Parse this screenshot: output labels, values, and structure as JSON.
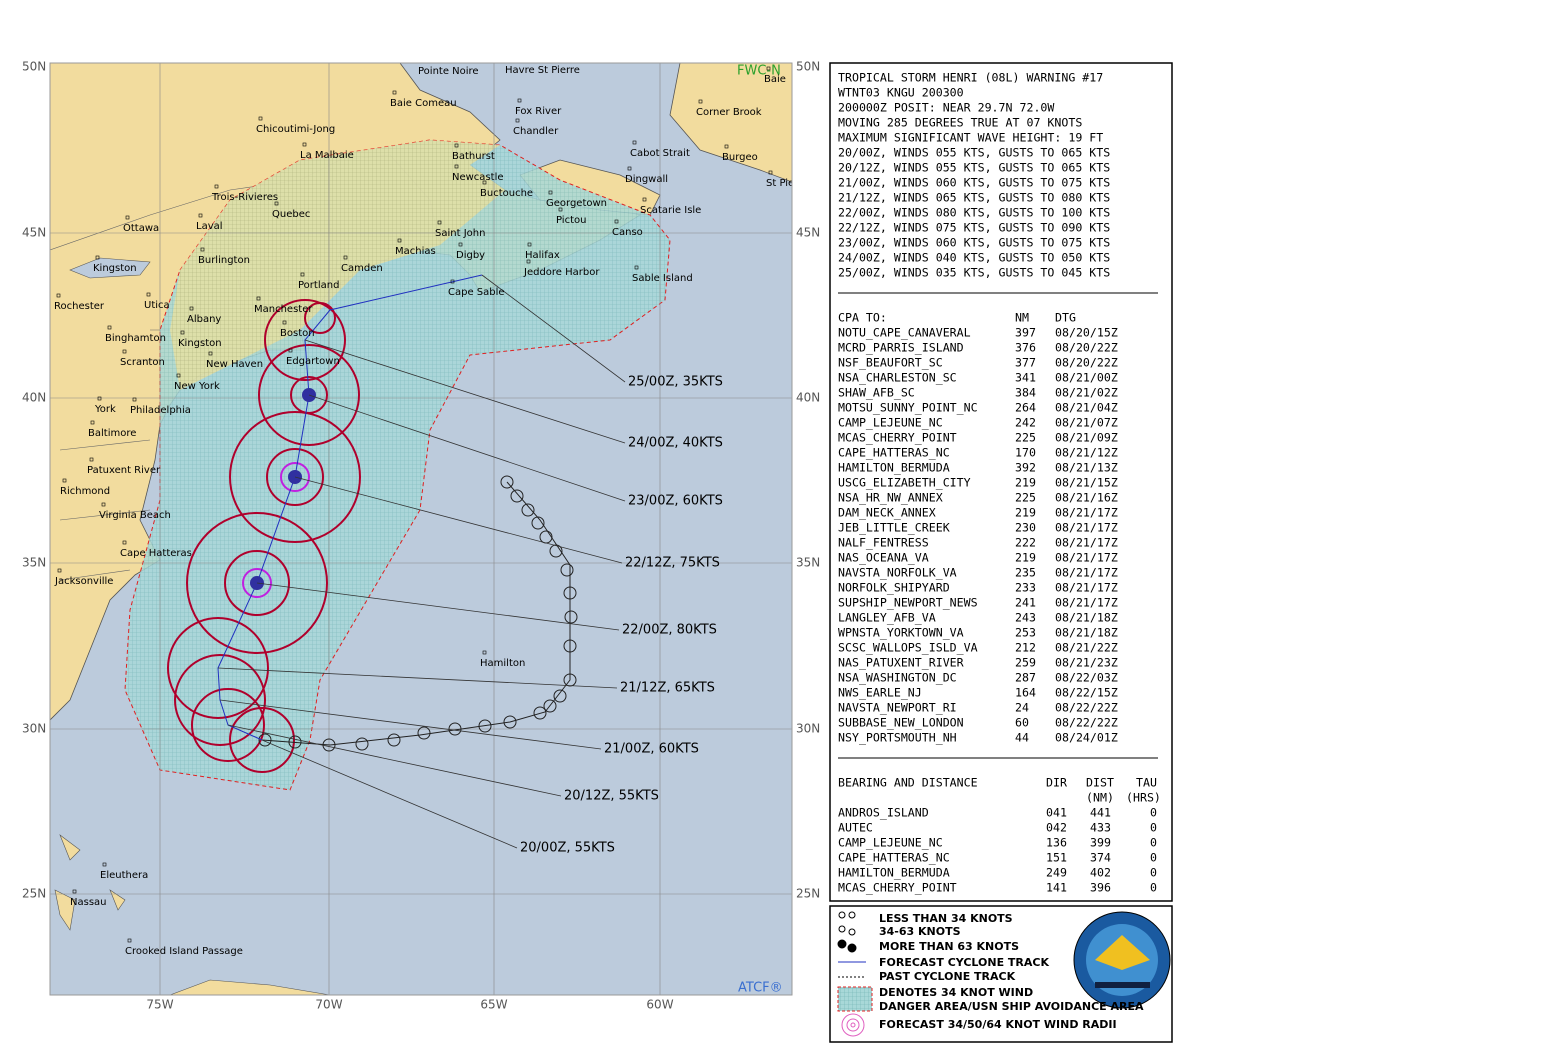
{
  "map": {
    "lat_labels": [
      "50N",
      "45N",
      "40N",
      "35N",
      "30N",
      "25N"
    ],
    "lon_labels": [
      "75W",
      "70W",
      "65W",
      "60W"
    ],
    "corner_labels": [
      "FWC-N",
      "ATCF®"
    ],
    "places": [
      "Pointe Noire",
      "Havre St Pierre",
      "Baie Comeau",
      "Fox River",
      "Corner Brook",
      "Chicoutimi-Jong",
      "Chandler",
      "La Malbaie",
      "Bathurst",
      "Cabot Strait",
      "Burgeo",
      "St Pie",
      "Newcastle",
      "Dingwall",
      "Buctouche",
      "Trois-Rivieres",
      "Georgetown",
      "Scatarie Isle",
      "Quebec",
      "Pictou",
      "Ottawa",
      "Laval",
      "Canso",
      "Saint John",
      "Burlington",
      "Machias",
      "Kingston",
      "Digby",
      "Halifax",
      "Camden",
      "Jeddore Harbor",
      "Sable Island",
      "Portland",
      "Cape Sable",
      "Rochester",
      "Utica",
      "Manchester",
      "Albany",
      "Boston",
      "Binghamton",
      "Kingston",
      "Edgartown",
      "Scranton",
      "New Haven",
      "New York",
      "York",
      "Philadelphia",
      "Baltimore",
      "Patuxent River",
      "Richmond",
      "Virginia Beach",
      "Cape Hatteras",
      "Jacksonville",
      "Hamilton",
      "Baie",
      "Eleuthera",
      "Nassau",
      "Crooked Island Passage"
    ],
    "forecast_labels": [
      "25/00Z, 35KTS",
      "24/00Z, 40KTS",
      "23/00Z, 60KTS",
      "22/12Z, 75KTS",
      "22/00Z, 80KTS",
      "21/12Z, 65KTS",
      "21/00Z, 60KTS",
      "20/12Z, 55KTS",
      "20/00Z, 55KTS"
    ]
  },
  "warning": {
    "lines": [
      "TROPICAL STORM HENRI (08L) WARNING #17",
      "WTNT03 KNGU 200300",
      "200000Z POSIT: NEAR 29.7N 72.0W",
      "MOVING 285 DEGREES TRUE AT 07 KNOTS",
      "MAXIMUM SIGNIFICANT WAVE HEIGHT: 19 FT",
      "20/00Z, WINDS 055 KTS, GUSTS TO 065 KTS",
      "20/12Z, WINDS 055 KTS, GUSTS TO 065 KTS",
      "21/00Z, WINDS 060 KTS, GUSTS TO 075 KTS",
      "21/12Z, WINDS 065 KTS, GUSTS TO 080 KTS",
      "22/00Z, WINDS 080 KTS, GUSTS TO 100 KTS",
      "22/12Z, WINDS 075 KTS, GUSTS TO 090 KTS",
      "23/00Z, WINDS 060 KTS, GUSTS TO 075 KTS",
      "24/00Z, WINDS 040 KTS, GUSTS TO 050 KTS",
      "25/00Z, WINDS 035 KTS, GUSTS TO 045 KTS"
    ]
  },
  "cpa": {
    "header": [
      "CPA TO:",
      "NM",
      "DTG"
    ],
    "rows": [
      [
        "NOTU_CAPE_CANAVERAL",
        "397",
        "08/20/15Z"
      ],
      [
        "MCRD_PARRIS_ISLAND",
        "376",
        "08/20/22Z"
      ],
      [
        "NSF_BEAUFORT_SC",
        "377",
        "08/20/22Z"
      ],
      [
        "NSA_CHARLESTON_SC",
        "341",
        "08/21/00Z"
      ],
      [
        "SHAW_AFB_SC",
        "384",
        "08/21/02Z"
      ],
      [
        "MOTSU_SUNNY_POINT_NC",
        "264",
        "08/21/04Z"
      ],
      [
        "CAMP_LEJEUNE_NC",
        "242",
        "08/21/07Z"
      ],
      [
        "MCAS_CHERRY_POINT",
        "225",
        "08/21/09Z"
      ],
      [
        "CAPE_HATTERAS_NC",
        "170",
        "08/21/12Z"
      ],
      [
        "HAMILTON_BERMUDA",
        "392",
        "08/21/13Z"
      ],
      [
        "USCG_ELIZABETH_CITY",
        "219",
        "08/21/15Z"
      ],
      [
        "NSA_HR_NW_ANNEX",
        "225",
        "08/21/16Z"
      ],
      [
        "DAM_NECK_ANNEX",
        "219",
        "08/21/17Z"
      ],
      [
        "JEB_LITTLE_CREEK",
        "230",
        "08/21/17Z"
      ],
      [
        "NALF_FENTRESS",
        "222",
        "08/21/17Z"
      ],
      [
        "NAS_OCEANA_VA",
        "219",
        "08/21/17Z"
      ],
      [
        "NAVSTA_NORFOLK_VA",
        "235",
        "08/21/17Z"
      ],
      [
        "NORFOLK_SHIPYARD",
        "233",
        "08/21/17Z"
      ],
      [
        "SUPSHIP_NEWPORT_NEWS",
        "241",
        "08/21/17Z"
      ],
      [
        "LANGLEY_AFB_VA",
        "243",
        "08/21/18Z"
      ],
      [
        "WPNSTA_YORKTOWN_VA",
        "253",
        "08/21/18Z"
      ],
      [
        "SCSC_WALLOPS_ISLD_VA",
        "212",
        "08/21/22Z"
      ],
      [
        "NAS_PATUXENT_RIVER",
        "259",
        "08/21/23Z"
      ],
      [
        "NSA_WASHINGTON_DC",
        "287",
        "08/22/03Z"
      ],
      [
        "NWS_EARLE_NJ",
        "164",
        "08/22/15Z"
      ],
      [
        "NAVSTA_NEWPORT_RI",
        "24",
        "08/22/22Z"
      ],
      [
        "SUBBASE_NEW_LONDON",
        "60",
        "08/22/22Z"
      ],
      [
        "NSY_PORTSMOUTH_NH",
        "44",
        "08/24/01Z"
      ]
    ]
  },
  "bearing": {
    "header": [
      "BEARING AND DISTANCE",
      "DIR",
      "DIST",
      "TAU"
    ],
    "subheader": [
      "(NM)",
      "(HRS)"
    ],
    "rows": [
      [
        "ANDROS_ISLAND",
        "041",
        "441",
        "0"
      ],
      [
        "AUTEC",
        "042",
        "433",
        "0"
      ],
      [
        "CAMP_LEJEUNE_NC",
        "136",
        "399",
        "0"
      ],
      [
        "CAPE_HATTERAS_NC",
        "151",
        "374",
        "0"
      ],
      [
        "HAMILTON_BERMUDA",
        "249",
        "402",
        "0"
      ],
      [
        "MCAS_CHERRY_POINT",
        "141",
        "396",
        "0"
      ]
    ]
  },
  "legend": {
    "items": [
      "LESS THAN 34 KNOTS",
      "34-63 KNOTS",
      "MORE THAN 63 KNOTS",
      "FORECAST CYCLONE TRACK",
      "PAST CYCLONE TRACK",
      "DENOTES 34 KNOT WIND",
      "DANGER AREA/USN SHIP AVOIDANCE AREA",
      "FORECAST 34/50/64 KNOT WIND RADII"
    ]
  }
}
